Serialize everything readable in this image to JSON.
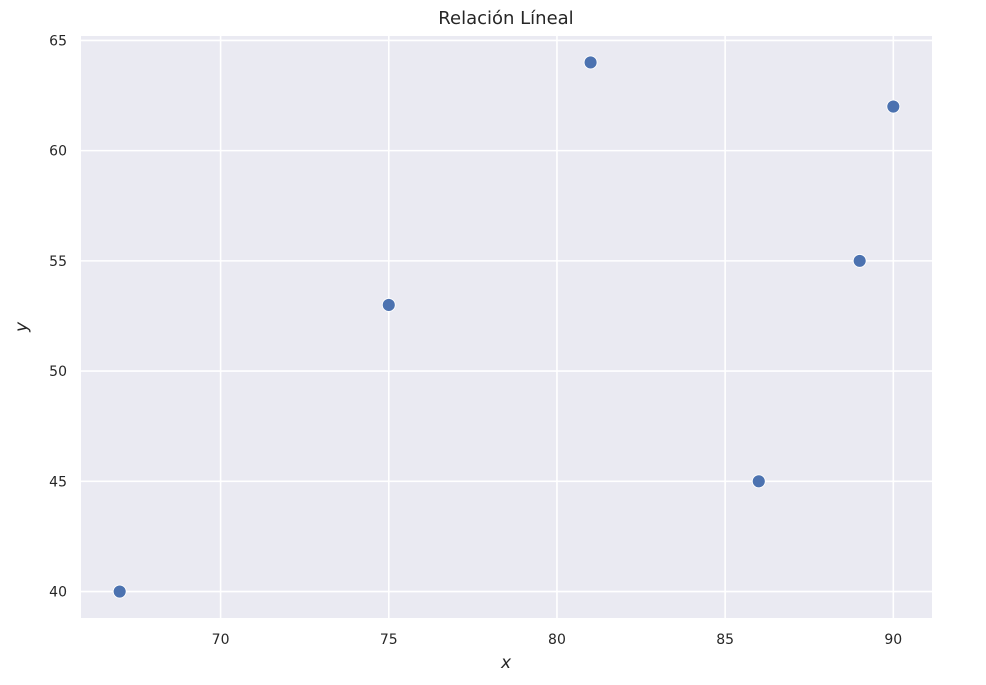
{
  "chart_data": {
    "type": "scatter",
    "title": "Relación Líneal",
    "xlabel": "x",
    "ylabel": "y",
    "xlim": [
      65.85,
      91.15
    ],
    "ylim": [
      38.8,
      65.2
    ],
    "xticks": [
      70,
      75,
      80,
      85,
      90
    ],
    "yticks": [
      40,
      45,
      50,
      55,
      60,
      65
    ],
    "grid": true,
    "legend": "none",
    "series": [
      {
        "color": "#4C72B0",
        "points": [
          {
            "x": 67,
            "y": 40
          },
          {
            "x": 75,
            "y": 53
          },
          {
            "x": 81,
            "y": 64
          },
          {
            "x": 86,
            "y": 45
          },
          {
            "x": 89,
            "y": 55
          },
          {
            "x": 90,
            "y": 62
          }
        ]
      }
    ],
    "background_color": "#EAEAF2",
    "grid_color": "#FFFFFF"
  }
}
